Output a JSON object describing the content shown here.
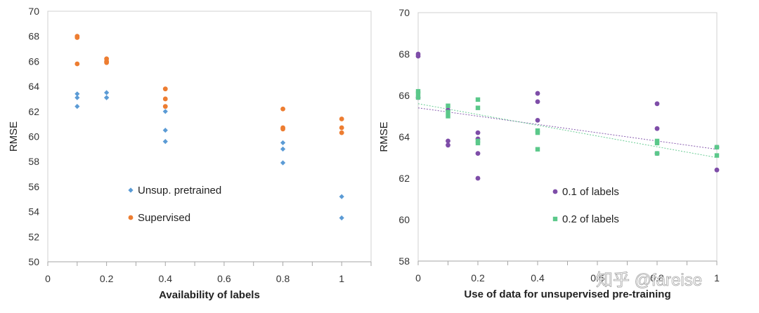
{
  "chart_data": [
    {
      "type": "scatter",
      "xlabel": "Availability of labels",
      "ylabel": "RMSE",
      "xlim": [
        0,
        1.1
      ],
      "ylim": [
        50,
        70
      ],
      "xticks": [
        0,
        0.2,
        0.4,
        0.6,
        0.8,
        1
      ],
      "yticks": [
        50,
        52,
        54,
        56,
        58,
        60,
        62,
        64,
        66,
        68,
        70
      ],
      "xtick_labels": [
        "0",
        "0.2",
        "0.4",
        "0.6",
        "0.8",
        "1"
      ],
      "ytick_labels": [
        "50",
        "52",
        "54",
        "56",
        "58",
        "60",
        "62",
        "64",
        "66",
        "68",
        "70"
      ],
      "grid": false,
      "legend_position": "bottom-center",
      "series": [
        {
          "name": "Unsup. pretrained",
          "marker": "diamond",
          "color": "#5B9BD5",
          "points": [
            [
              0.1,
              63.4
            ],
            [
              0.1,
              63.1
            ],
            [
              0.1,
              62.4
            ],
            [
              0.2,
              63.5
            ],
            [
              0.2,
              63.1
            ],
            [
              0.2,
              63.1
            ],
            [
              0.4,
              62.0
            ],
            [
              0.4,
              60.5
            ],
            [
              0.4,
              59.6
            ],
            [
              0.8,
              59.5
            ],
            [
              0.8,
              59.0
            ],
            [
              0.8,
              57.9
            ],
            [
              1.0,
              55.2
            ],
            [
              1.0,
              53.5
            ]
          ]
        },
        {
          "name": "Supervised",
          "marker": "circle",
          "color": "#ED7D31",
          "points": [
            [
              0.1,
              68.0
            ],
            [
              0.1,
              67.9
            ],
            [
              0.1,
              65.8
            ],
            [
              0.2,
              66.2
            ],
            [
              0.2,
              66.0
            ],
            [
              0.2,
              65.9
            ],
            [
              0.4,
              63.8
            ],
            [
              0.4,
              63.0
            ],
            [
              0.4,
              62.4
            ],
            [
              0.8,
              62.2
            ],
            [
              0.8,
              60.7
            ],
            [
              0.8,
              60.6
            ],
            [
              1.0,
              61.4
            ],
            [
              1.0,
              60.7
            ],
            [
              1.0,
              60.3
            ]
          ]
        }
      ]
    },
    {
      "type": "scatter",
      "xlabel": "Use of data for unsupervised pre-training",
      "ylabel": "RMSE",
      "xlim": [
        0,
        1.0
      ],
      "ylim": [
        58,
        70
      ],
      "xticks": [
        0,
        0.2,
        0.4,
        0.6,
        0.8,
        1
      ],
      "yticks": [
        58,
        60,
        62,
        64,
        66,
        68,
        70
      ],
      "xtick_labels": [
        "0",
        "0.2",
        "0.4",
        "0.6",
        "0.8",
        "1"
      ],
      "ytick_labels": [
        "58",
        "60",
        "62",
        "64",
        "66",
        "68",
        "70"
      ],
      "grid": false,
      "legend_position": "bottom-center",
      "series": [
        {
          "name": "0.1 of labels",
          "marker": "circle",
          "color": "#7E4DA8",
          "points": [
            [
              0,
              68.0
            ],
            [
              0,
              67.9
            ],
            [
              0,
              65.9
            ],
            [
              0.1,
              65.3
            ],
            [
              0.1,
              63.8
            ],
            [
              0.1,
              63.6
            ],
            [
              0.2,
              64.2
            ],
            [
              0.2,
              63.9
            ],
            [
              0.2,
              63.2
            ],
            [
              0.2,
              62.0
            ],
            [
              0.4,
              66.1
            ],
            [
              0.4,
              65.7
            ],
            [
              0.4,
              64.8
            ],
            [
              0.8,
              65.6
            ],
            [
              0.8,
              64.4
            ],
            [
              0.8,
              63.2
            ],
            [
              1.0,
              63.5
            ],
            [
              1.0,
              62.4
            ]
          ],
          "trendline": [
            [
              0,
              65.4
            ],
            [
              1.0,
              63.4
            ]
          ]
        },
        {
          "name": "0.2 of labels",
          "marker": "square",
          "color": "#5BC88A",
          "points": [
            [
              0,
              66.2
            ],
            [
              0,
              66.1
            ],
            [
              0,
              65.9
            ],
            [
              0.1,
              65.5
            ],
            [
              0.1,
              65.2
            ],
            [
              0.1,
              65.0
            ],
            [
              0.2,
              65.8
            ],
            [
              0.2,
              65.4
            ],
            [
              0.2,
              63.8
            ],
            [
              0.2,
              63.7
            ],
            [
              0.4,
              64.3
            ],
            [
              0.4,
              64.2
            ],
            [
              0.4,
              63.4
            ],
            [
              0.8,
              63.8
            ],
            [
              0.8,
              63.7
            ],
            [
              0.8,
              63.2
            ],
            [
              1.0,
              63.5
            ],
            [
              1.0,
              63.1
            ]
          ],
          "trendline": [
            [
              0,
              65.6
            ],
            [
              1.0,
              63.0
            ]
          ]
        }
      ]
    }
  ],
  "watermark": "知乎 @fareise"
}
